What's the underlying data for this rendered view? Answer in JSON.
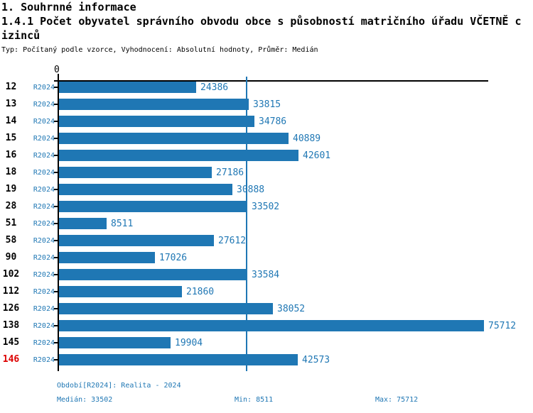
{
  "header": {
    "title": "1. Souhrnné informace",
    "subtitle_line1": "1.4.1 Počet obyvatel správního obvodu obce s působností matričního úřadu VČETNĚ c",
    "subtitle_line2": "izinců",
    "meta": "Typ: Počítaný podle vzorce, Vyhodnocení: Absolutní hodnoty, Průměr: Medián"
  },
  "chart_data": {
    "type": "bar",
    "orientation": "horizontal",
    "title": "1.4.1 Počet obyvatel správního obvodu obce s působností matričního úřadu VČETNĚ cizinců",
    "x_axis": {
      "zero_label": "0",
      "xlim": [
        0,
        76500
      ],
      "grid": false
    },
    "series_label": "R2024",
    "categories": [
      "12",
      "13",
      "14",
      "15",
      "16",
      "18",
      "19",
      "28",
      "51",
      "58",
      "90",
      "102",
      "112",
      "126",
      "138",
      "145",
      "146"
    ],
    "values": [
      24386,
      33815,
      34786,
      40889,
      42601,
      27186,
      30888,
      33502,
      8511,
      27612,
      17026,
      33584,
      21860,
      38052,
      75712,
      19904,
      42573
    ],
    "highlighted_category": "146",
    "median": 33502,
    "min": 8511,
    "max": 75712,
    "colors": {
      "bar": "#1f77b4",
      "value_label": "#1f77b4",
      "series_label": "#1f77b4",
      "median_line": "#1f77b4",
      "axis": "#000000",
      "row_label": "#000000",
      "highlighted_row_label": "#dd0000",
      "footer_text": "#1f77b4"
    }
  },
  "footer": {
    "period": "Období[R2024]: Realita - 2024",
    "median": "Medián: 33502",
    "min": "Min: 8511",
    "max": "Max: 75712"
  }
}
